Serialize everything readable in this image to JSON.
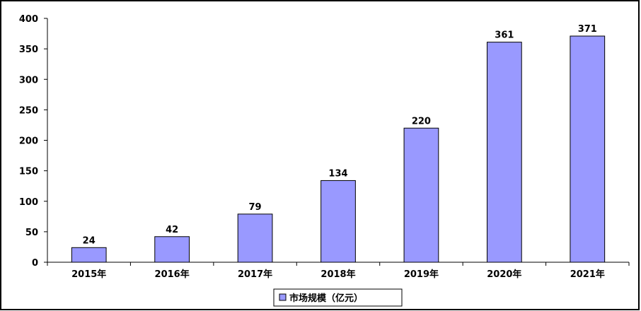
{
  "chart_data": {
    "type": "bar",
    "categories": [
      "2015年",
      "2016年",
      "2017年",
      "2018年",
      "2019年",
      "2020年",
      "2021年"
    ],
    "series": [
      {
        "name": "市场规模（亿元）",
        "values": [
          24,
          42,
          79,
          134,
          220,
          361,
          371
        ],
        "color": "#9999ff"
      }
    ],
    "data_labels": [
      "24",
      "42",
      "79",
      "134",
      "220",
      "361",
      "371"
    ],
    "ylim": [
      0,
      400
    ],
    "yticks": [
      0,
      50,
      100,
      150,
      200,
      250,
      300,
      350,
      400
    ],
    "ytick_labels": [
      "0",
      "50",
      "100",
      "150",
      "200",
      "250",
      "300",
      "350",
      "400"
    ],
    "grid": false,
    "legend_position": "bottom-center",
    "bar_border_color": "#000000"
  }
}
